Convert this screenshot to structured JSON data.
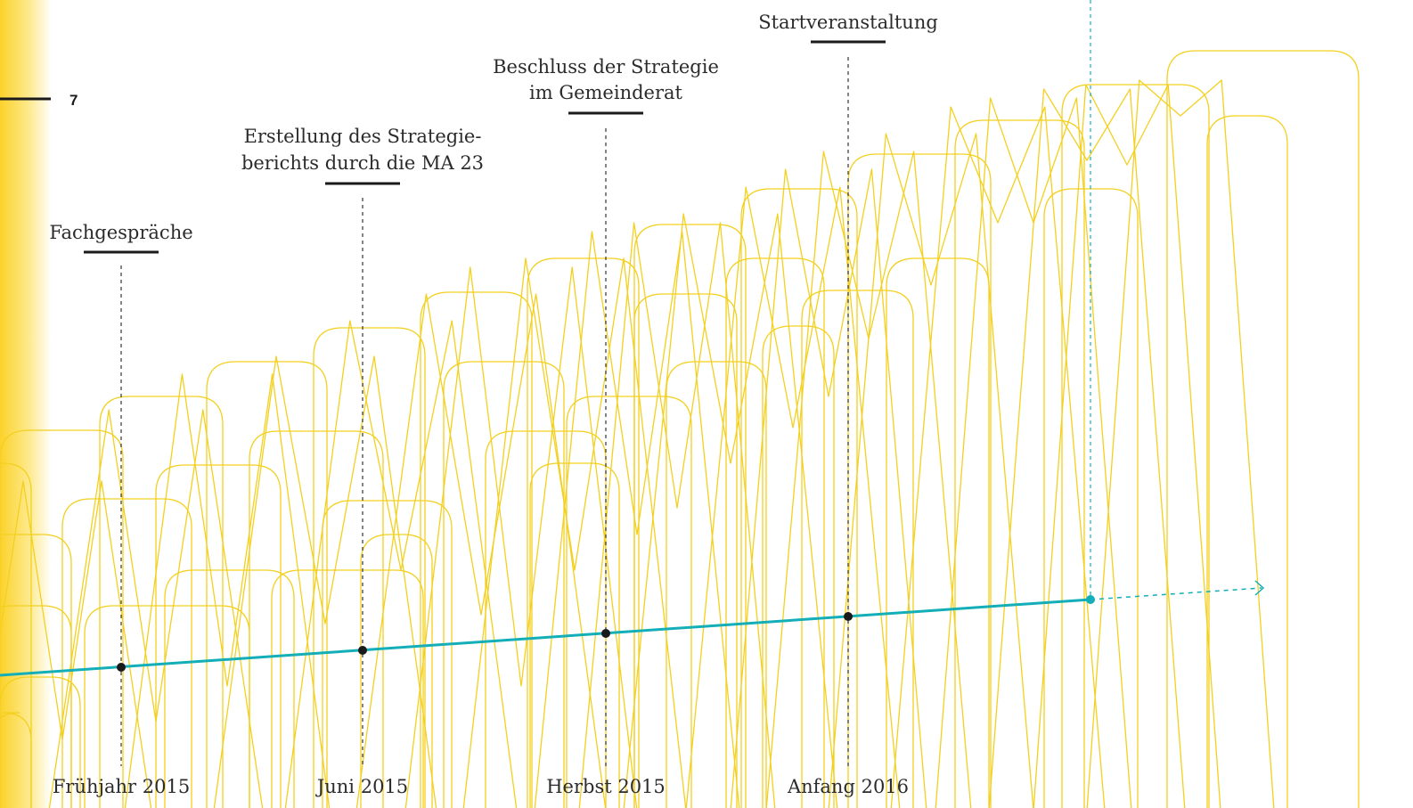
{
  "page_number": "7",
  "colors": {
    "timeline": "#13aeb7",
    "ribbon": "#f3d020",
    "strip": "#fcd22a",
    "text": "#2b2b2b"
  },
  "milestones": [
    {
      "id": "fachgespraeche",
      "title_lines": [
        "Fachgespräche"
      ],
      "date": "Frühjahr 2015"
    },
    {
      "id": "erstellung",
      "title_lines": [
        "Erstellung des Strategie-",
        "berichts durch die MA 23"
      ],
      "date": "Juni 2015"
    },
    {
      "id": "beschluss",
      "title_lines": [
        "Beschluss der Strategie",
        "im Gemeinderat"
      ],
      "date": "Herbst 2015"
    },
    {
      "id": "startveranstaltung",
      "title_lines": [
        "Startveranstaltung"
      ],
      "date": "Anfang 2016"
    }
  ]
}
